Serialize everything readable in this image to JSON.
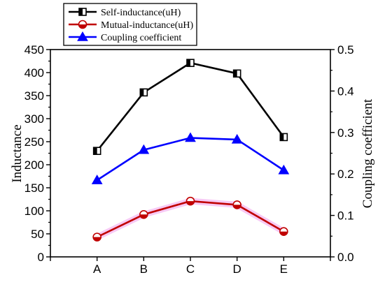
{
  "chart_data": {
    "type": "line",
    "categories": [
      "A",
      "B",
      "C",
      "D",
      "E"
    ],
    "ylabel": "Inductance",
    "ylabel_right": "Coupling coefficient",
    "ylim": [
      0,
      450
    ],
    "ylim_right": [
      0,
      0.5
    ],
    "yticks": [
      "0",
      "50",
      "100",
      "150",
      "200",
      "250",
      "300",
      "350",
      "400",
      "450"
    ],
    "yticks_right": [
      "0.0",
      "0.1",
      "0.2",
      "0.3",
      "0.4",
      "0.5"
    ],
    "legend_position": "top-left",
    "series": [
      {
        "name": "Self-inductance(uH)",
        "axis": "left",
        "color": "#000000",
        "marker": "half-filled-square",
        "values": [
          230,
          357,
          421,
          398,
          260
        ]
      },
      {
        "name": "Mutual-inductance(uH)",
        "axis": "left",
        "color": "#c00000",
        "marker": "half-filled-circle",
        "values": [
          43,
          92,
          121,
          113,
          55
        ]
      },
      {
        "name": "Coupling coefficient",
        "axis": "right",
        "color": "#0000ff",
        "marker": "triangle",
        "values": [
          0.185,
          0.258,
          0.287,
          0.283,
          0.209
        ]
      }
    ]
  }
}
